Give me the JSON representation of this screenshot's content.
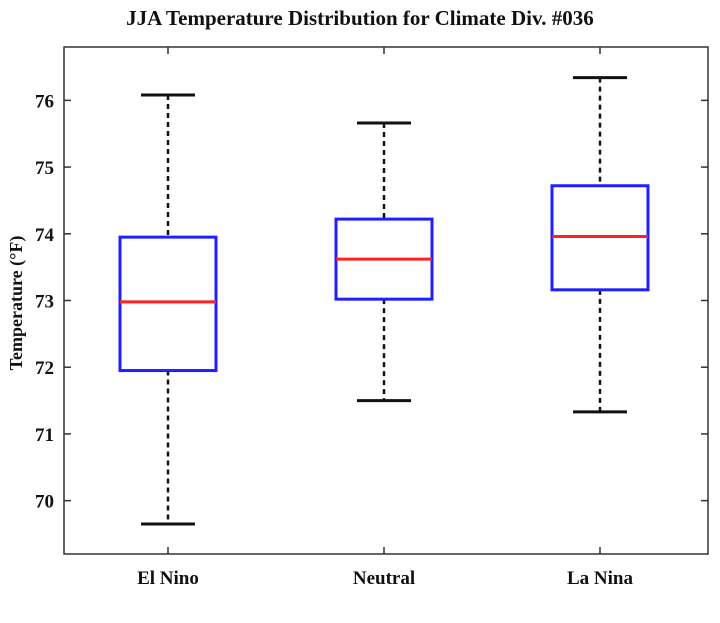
{
  "chart_data": {
    "type": "box",
    "title": "JJA Temperature Distribution for Climate Div. #036",
    "xlabel": "",
    "ylabel": "Temperature (°F)",
    "categories": [
      "El Nino",
      "Neutral",
      "La Nina"
    ],
    "ylim": [
      69.2,
      76.8
    ],
    "yticks": [
      70,
      71,
      72,
      73,
      74,
      75,
      76
    ],
    "grid": false,
    "boxes": [
      {
        "category": "El Nino",
        "whisker_low": 69.65,
        "q1": 71.95,
        "median": 72.98,
        "q3": 73.95,
        "whisker_high": 76.08
      },
      {
        "category": "Neutral",
        "whisker_low": 71.5,
        "q1": 73.02,
        "median": 73.62,
        "q3": 74.22,
        "whisker_high": 75.66
      },
      {
        "category": "La Nina",
        "whisker_low": 71.33,
        "q1": 73.16,
        "median": 73.96,
        "q3": 74.72,
        "whisker_high": 76.34
      }
    ],
    "colors": {
      "box": "#1f1fff",
      "median": "#ff1f1f",
      "whisker": "#111111"
    }
  }
}
